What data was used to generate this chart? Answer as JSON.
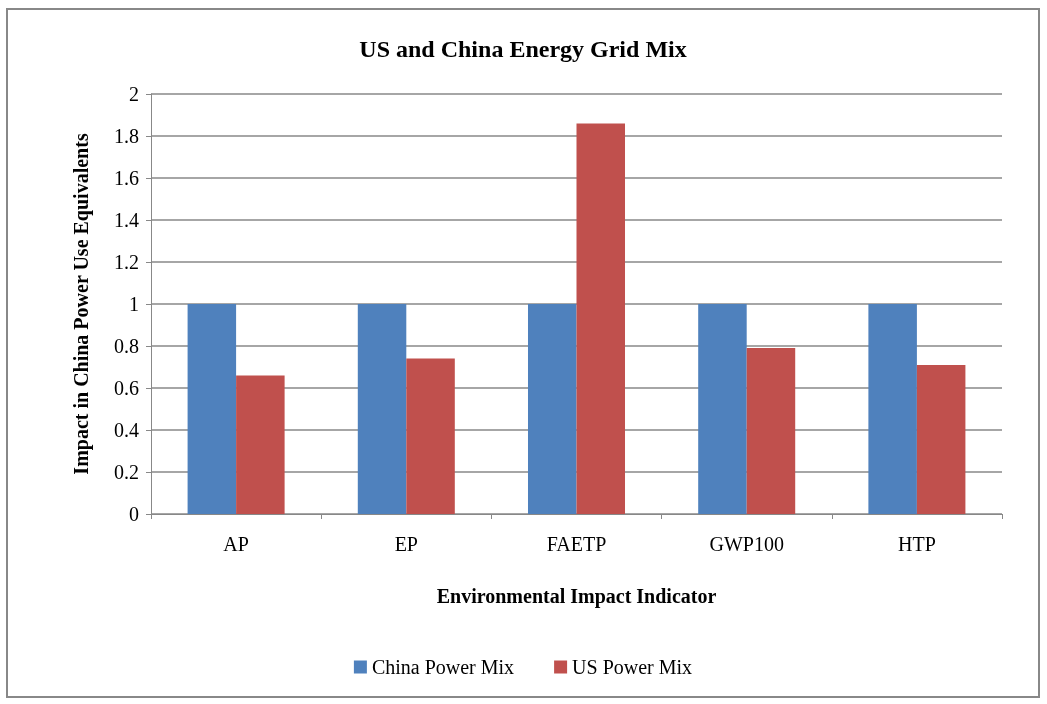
{
  "chart_data": {
    "type": "bar",
    "title": "US and China Energy Grid Mix",
    "xlabel": "Environmental Impact Indicator",
    "ylabel": "Impact in China Power Use Equivalents",
    "categories": [
      "AP",
      "EP",
      "FAETP",
      "GWP100",
      "HTP"
    ],
    "series": [
      {
        "name": "China Power Mix",
        "color": "#4f81bd",
        "values": [
          1,
          1,
          1,
          1,
          1
        ]
      },
      {
        "name": "US Power Mix",
        "color": "#c0504d",
        "values": [
          0.66,
          0.74,
          1.86,
          0.79,
          0.71
        ]
      }
    ],
    "ylim": [
      0,
      2
    ],
    "yticks": [
      0,
      0.2,
      0.4,
      0.6,
      0.8,
      1,
      1.2,
      1.4,
      1.6,
      1.8,
      2
    ],
    "grid": "y",
    "legend": "bottom"
  }
}
